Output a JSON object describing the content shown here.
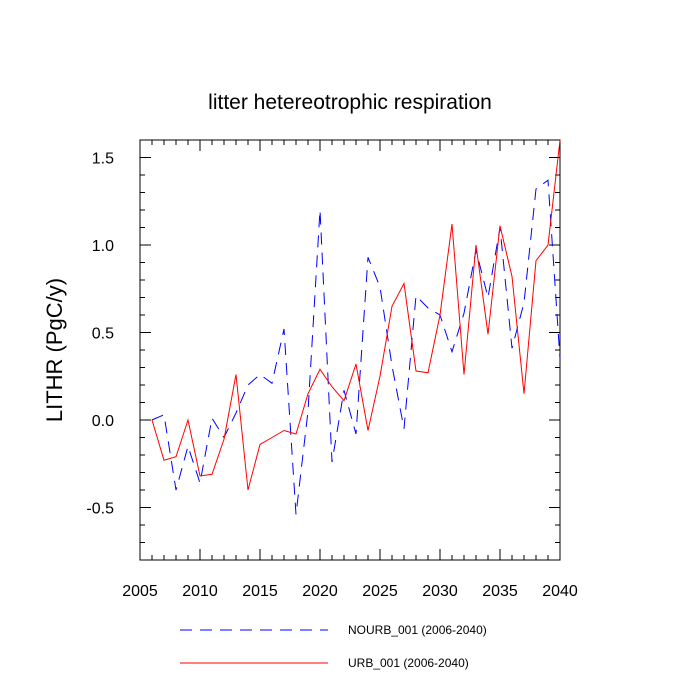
{
  "chart_data": {
    "type": "line",
    "title": "litter hetereotrophic respiration",
    "xlabel": "",
    "ylabel": "LITHR  (PgC/y)",
    "xlim": [
      2005,
      2040
    ],
    "ylim": [
      -0.8,
      1.6
    ],
    "xticks": [
      2005,
      2010,
      2015,
      2020,
      2025,
      2030,
      2035,
      2040
    ],
    "xtick_labels": [
      "2005",
      "2010",
      "2015",
      "2020",
      "2025",
      "2030",
      "2035",
      "2040"
    ],
    "yticks": [
      -0.5,
      0.0,
      0.5,
      1.0,
      1.5
    ],
    "ytick_labels": [
      "-0.5",
      "0.0",
      "0.5",
      "1.0",
      "1.5"
    ],
    "x": [
      2006,
      2007,
      2008,
      2009,
      2010,
      2011,
      2012,
      2013,
      2014,
      2015,
      2016,
      2017,
      2018,
      2019,
      2020,
      2021,
      2022,
      2023,
      2024,
      2025,
      2026,
      2027,
      2028,
      2029,
      2030,
      2031,
      2032,
      2033,
      2034,
      2035,
      2036,
      2037,
      2038,
      2039,
      2040
    ],
    "series": [
      {
        "name": "NOURB_001 (2006-2040)",
        "color": "#0000ff",
        "style": "dashed",
        "values": [
          0.0,
          0.03,
          -0.4,
          -0.15,
          -0.36,
          0.01,
          -0.1,
          0.04,
          0.2,
          0.26,
          0.21,
          0.52,
          -0.54,
          0.05,
          1.2,
          -0.24,
          0.17,
          -0.08,
          0.93,
          0.76,
          0.31,
          -0.05,
          0.71,
          0.64,
          0.6,
          0.39,
          0.61,
          0.97,
          0.7,
          1.1,
          0.41,
          0.67,
          1.32,
          1.37,
          0.35
        ]
      },
      {
        "name": "URB_001 (2006-2040)",
        "color": "#ff0000",
        "style": "solid",
        "values": [
          0.0,
          -0.23,
          -0.21,
          0.0,
          -0.32,
          -0.31,
          -0.11,
          0.26,
          -0.4,
          -0.14,
          -0.1,
          -0.06,
          -0.08,
          0.15,
          0.29,
          0.19,
          0.11,
          0.32,
          -0.06,
          0.25,
          0.65,
          0.78,
          0.28,
          0.27,
          0.6,
          1.12,
          0.26,
          1.0,
          0.49,
          1.11,
          0.82,
          0.15,
          0.91,
          1.0,
          1.6
        ]
      }
    ],
    "legend_position": "bottom"
  }
}
